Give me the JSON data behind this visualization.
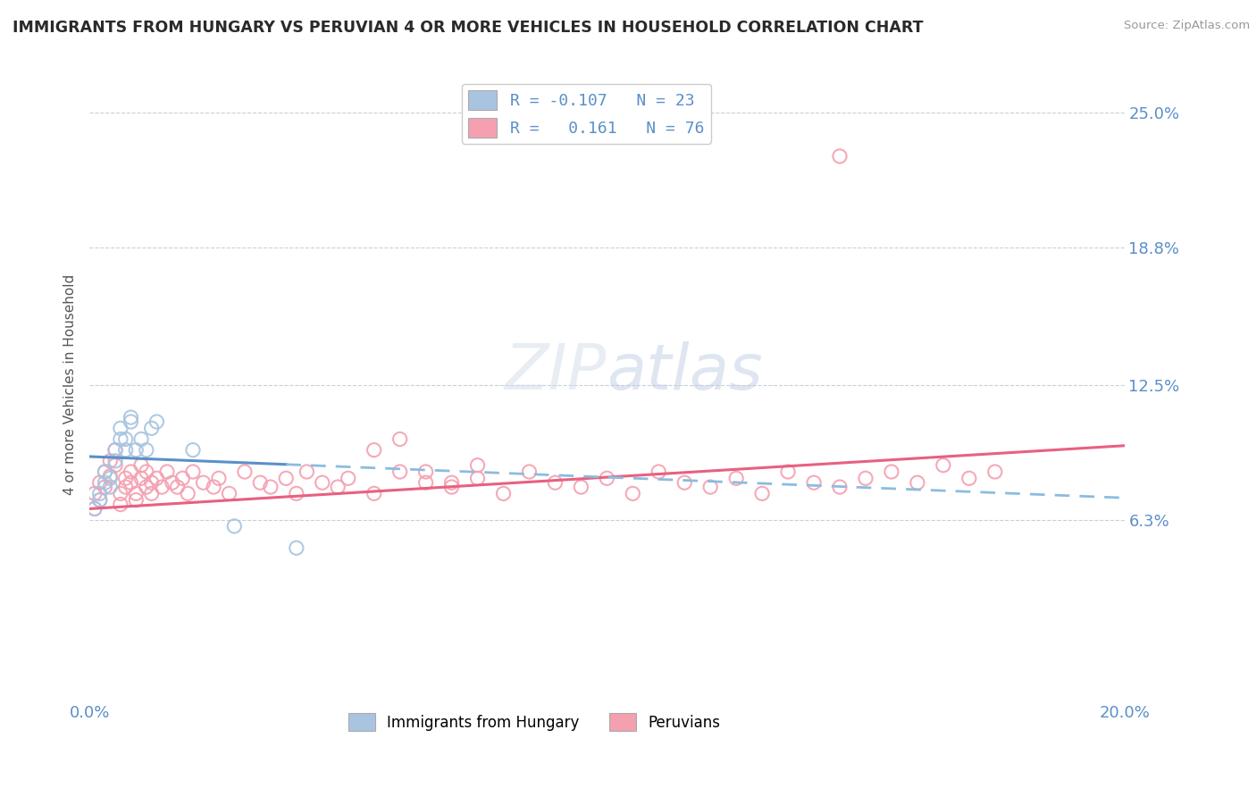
{
  "title": "IMMIGRANTS FROM HUNGARY VS PERUVIAN 4 OR MORE VEHICLES IN HOUSEHOLD CORRELATION CHART",
  "source": "Source: ZipAtlas.com",
  "ylabel": "4 or more Vehicles in Household",
  "xlim": [
    0.0,
    0.2
  ],
  "ylim": [
    -0.02,
    0.27
  ],
  "xtick_labels": [
    "0.0%",
    "20.0%"
  ],
  "xtick_positions": [
    0.0,
    0.2
  ],
  "ytick_labels": [
    "6.3%",
    "12.5%",
    "18.8%",
    "25.0%"
  ],
  "ytick_positions": [
    0.063,
    0.125,
    0.188,
    0.25
  ],
  "color_hungary": "#a8c4e0",
  "color_peru": "#f4a0b0",
  "color_trend_hungary_solid": "#5b8fc9",
  "color_trend_hungary_dash": "#8bbce0",
  "color_trend_peru": "#e86080",
  "color_axis_labels": "#5b8fc9",
  "color_legend_values": "#5b8fc9",
  "hungary_x": [
    0.001,
    0.002,
    0.002,
    0.003,
    0.003,
    0.004,
    0.004,
    0.005,
    0.005,
    0.006,
    0.006,
    0.007,
    0.007,
    0.008,
    0.008,
    0.009,
    0.01,
    0.011,
    0.012,
    0.013,
    0.02,
    0.028,
    0.04
  ],
  "hungary_y": [
    0.068,
    0.072,
    0.075,
    0.08,
    0.085,
    0.078,
    0.082,
    0.09,
    0.095,
    0.1,
    0.105,
    0.095,
    0.1,
    0.108,
    0.11,
    0.095,
    0.1,
    0.095,
    0.105,
    0.108,
    0.095,
    0.06,
    0.05
  ],
  "peru_x": [
    0.001,
    0.001,
    0.002,
    0.002,
    0.003,
    0.003,
    0.004,
    0.004,
    0.005,
    0.005,
    0.006,
    0.006,
    0.007,
    0.007,
    0.008,
    0.008,
    0.009,
    0.009,
    0.01,
    0.01,
    0.011,
    0.011,
    0.012,
    0.012,
    0.013,
    0.014,
    0.015,
    0.016,
    0.017,
    0.018,
    0.019,
    0.02,
    0.022,
    0.024,
    0.025,
    0.027,
    0.03,
    0.033,
    0.035,
    0.038,
    0.04,
    0.042,
    0.045,
    0.048,
    0.05,
    0.055,
    0.06,
    0.065,
    0.07,
    0.075,
    0.08,
    0.085,
    0.09,
    0.095,
    0.1,
    0.105,
    0.11,
    0.115,
    0.12,
    0.125,
    0.13,
    0.135,
    0.14,
    0.145,
    0.15,
    0.155,
    0.16,
    0.165,
    0.17,
    0.175,
    0.055,
    0.06,
    0.065,
    0.07,
    0.075,
    0.145
  ],
  "peru_y": [
    0.068,
    0.075,
    0.08,
    0.072,
    0.085,
    0.078,
    0.09,
    0.083,
    0.095,
    0.088,
    0.075,
    0.07,
    0.082,
    0.078,
    0.085,
    0.08,
    0.072,
    0.075,
    0.088,
    0.082,
    0.078,
    0.085,
    0.08,
    0.075,
    0.082,
    0.078,
    0.085,
    0.08,
    0.078,
    0.082,
    0.075,
    0.085,
    0.08,
    0.078,
    0.082,
    0.075,
    0.085,
    0.08,
    0.078,
    0.082,
    0.075,
    0.085,
    0.08,
    0.078,
    0.082,
    0.075,
    0.085,
    0.08,
    0.078,
    0.082,
    0.075,
    0.085,
    0.08,
    0.078,
    0.082,
    0.075,
    0.085,
    0.08,
    0.078,
    0.082,
    0.075,
    0.085,
    0.08,
    0.078,
    0.082,
    0.085,
    0.08,
    0.088,
    0.082,
    0.085,
    0.095,
    0.1,
    0.085,
    0.08,
    0.088,
    0.23
  ],
  "legend_line1": "R = -0.107   N = 23",
  "legend_line2": "R =  0.161   N = 76",
  "bottom_legend1": "Immigrants from Hungary",
  "bottom_legend2": "Peruvians"
}
